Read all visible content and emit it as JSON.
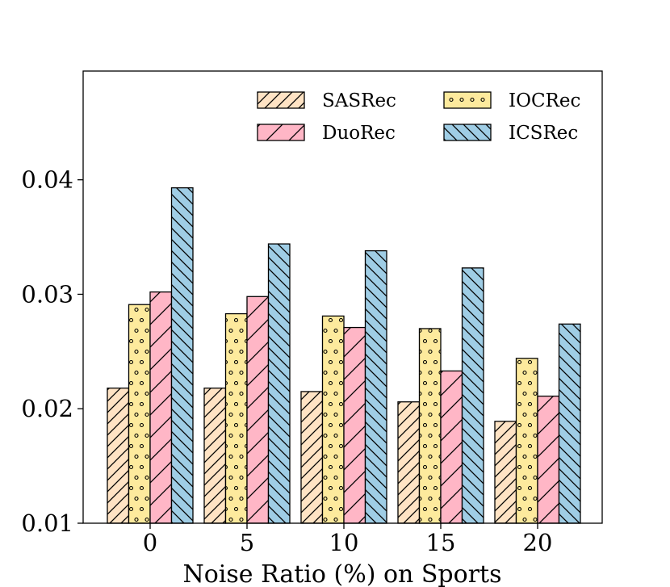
{
  "chart_data": {
    "type": "bar",
    "title": "",
    "xlabel": "Noise Ratio (%) on Sports",
    "ylabel": "",
    "categories": [
      "0",
      "5",
      "10",
      "15",
      "20"
    ],
    "ylim": [
      0.01,
      0.0495
    ],
    "yticks": [
      0.01,
      0.02,
      0.03,
      0.04
    ],
    "ytick_labels": [
      "0.01",
      "0.02",
      "0.03",
      "0.04"
    ],
    "legend_position": "top-right",
    "series": [
      {
        "name": "SASRec",
        "color": "#ffe3c4",
        "hatch": "forward-diagonal",
        "values": [
          0.0218,
          0.0218,
          0.0215,
          0.0206,
          0.0189
        ]
      },
      {
        "name": "IOCRec",
        "color": "#fdea9d",
        "hatch": "dots",
        "values": [
          0.0291,
          0.0283,
          0.0281,
          0.027,
          0.0244
        ]
      },
      {
        "name": "DuoRec",
        "color": "#ffb6c6",
        "hatch": "forward-diagonal-sparse",
        "values": [
          0.0302,
          0.0298,
          0.0271,
          0.0233,
          0.0211
        ]
      },
      {
        "name": "ICSRec",
        "color": "#9fcde5",
        "hatch": "back-diagonal",
        "values": [
          0.0393,
          0.0344,
          0.0338,
          0.0323,
          0.0274
        ]
      }
    ]
  }
}
